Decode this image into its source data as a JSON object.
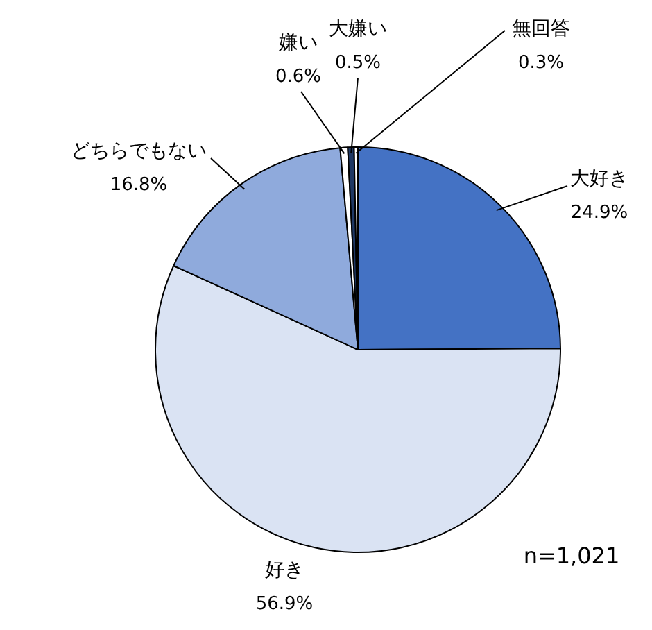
{
  "chart_data": {
    "type": "pie",
    "categories": [
      "大好き",
      "好き",
      "どちらでもない",
      "嫌い",
      "大嫌い",
      "無回答"
    ],
    "values": [
      24.9,
      56.9,
      16.8,
      0.6,
      0.5,
      0.3
    ],
    "value_labels": [
      "24.9%",
      "56.9%",
      "16.8%",
      "0.6%",
      "0.5%",
      "0.3%"
    ],
    "colors": [
      "#4472c4",
      "#dae3f3",
      "#8faadc",
      "#ffffff",
      "#1f3864",
      "#ffffff"
    ],
    "annotations": [
      "n=1,021"
    ],
    "legend": false
  }
}
